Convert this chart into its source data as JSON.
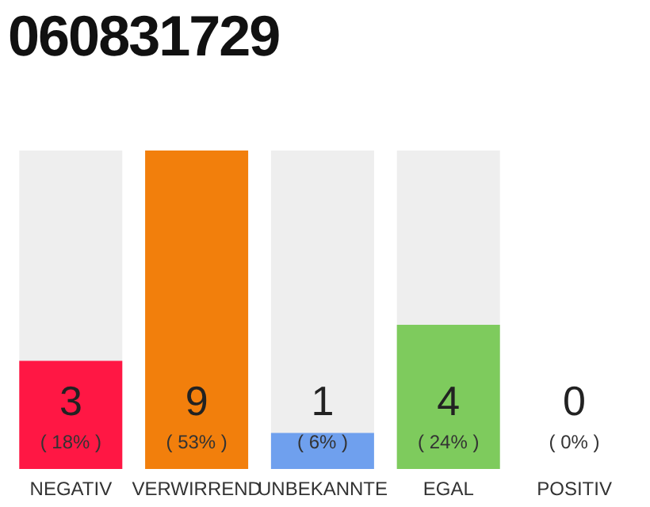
{
  "chart_data": {
    "type": "bar",
    "title": "060831729",
    "categories": [
      "NEGATIV",
      "VERWIRREND",
      "UNBEKANNTE",
      "EGAL",
      "POSITIV"
    ],
    "values": [
      18,
      53,
      6,
      24,
      0
    ],
    "colors": [
      "#ff1744",
      "#f27f0c",
      "#6fa0ee",
      "#7ecb5d",
      "#cccccc"
    ],
    "value_labels": [
      "( 18% )",
      "( 53% )",
      "( 6% )",
      "( 24% )",
      "( 0% )"
    ],
    "annotations": [
      "3",
      "9",
      "1",
      "4",
      "0"
    ]
  }
}
